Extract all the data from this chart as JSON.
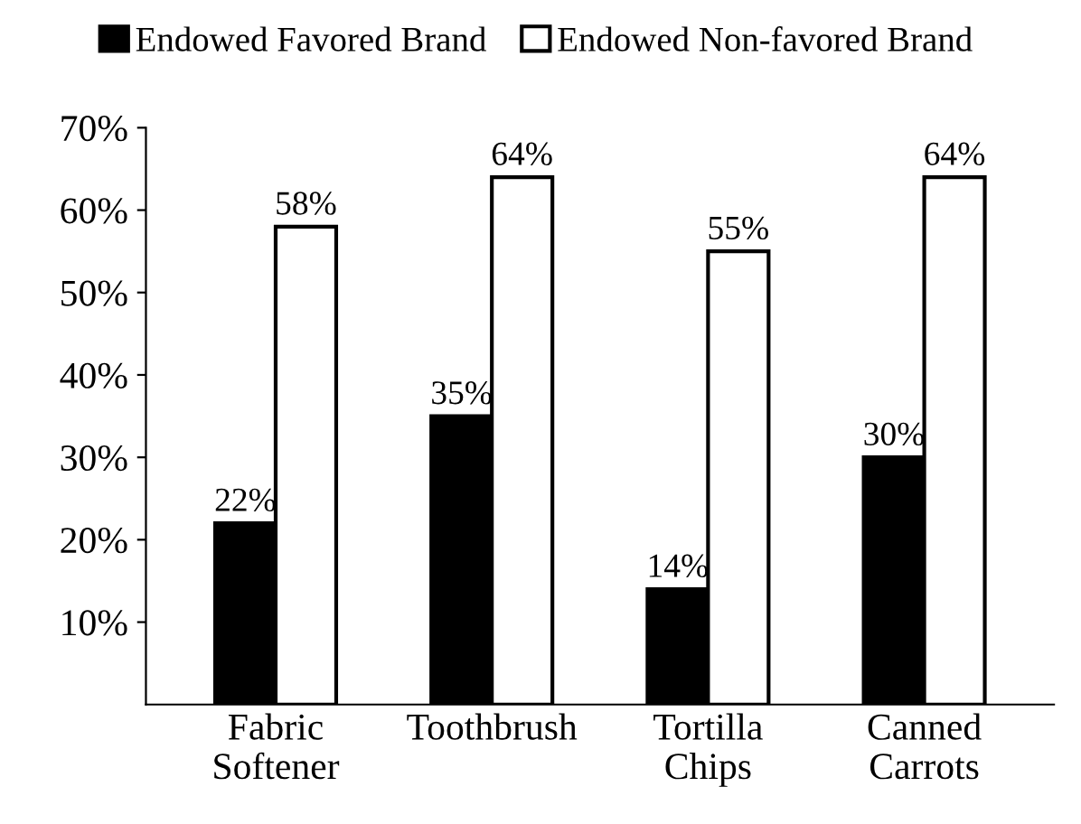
{
  "chart_data": {
    "type": "bar",
    "categories": [
      "Fabric\nSoftener",
      "Toothbrush",
      "Tortilla\nChips",
      "Canned\nCarrots"
    ],
    "series": [
      {
        "name": "Endowed Favored Brand",
        "color": "#000000",
        "values": [
          22,
          35,
          14,
          30
        ]
      },
      {
        "name": "Endowed Non-favored Brand",
        "color": "#ffffff",
        "values": [
          58,
          64,
          55,
          64
        ]
      }
    ],
    "ylim": [
      0,
      70
    ],
    "yticks": [
      {
        "value": 10,
        "label": "10%"
      },
      {
        "value": 20,
        "label": "20%"
      },
      {
        "value": 30,
        "label": "30%"
      },
      {
        "value": 40,
        "label": "40%"
      },
      {
        "value": 50,
        "label": "50%"
      },
      {
        "value": 60,
        "label": "60%"
      },
      {
        "value": 70,
        "label": "70%"
      }
    ],
    "value_labels": [
      [
        "22%",
        "35%",
        "14%",
        "30%"
      ],
      [
        "58%",
        "64%",
        "55%",
        "64%"
      ]
    ],
    "grid": false,
    "legend": "top"
  }
}
